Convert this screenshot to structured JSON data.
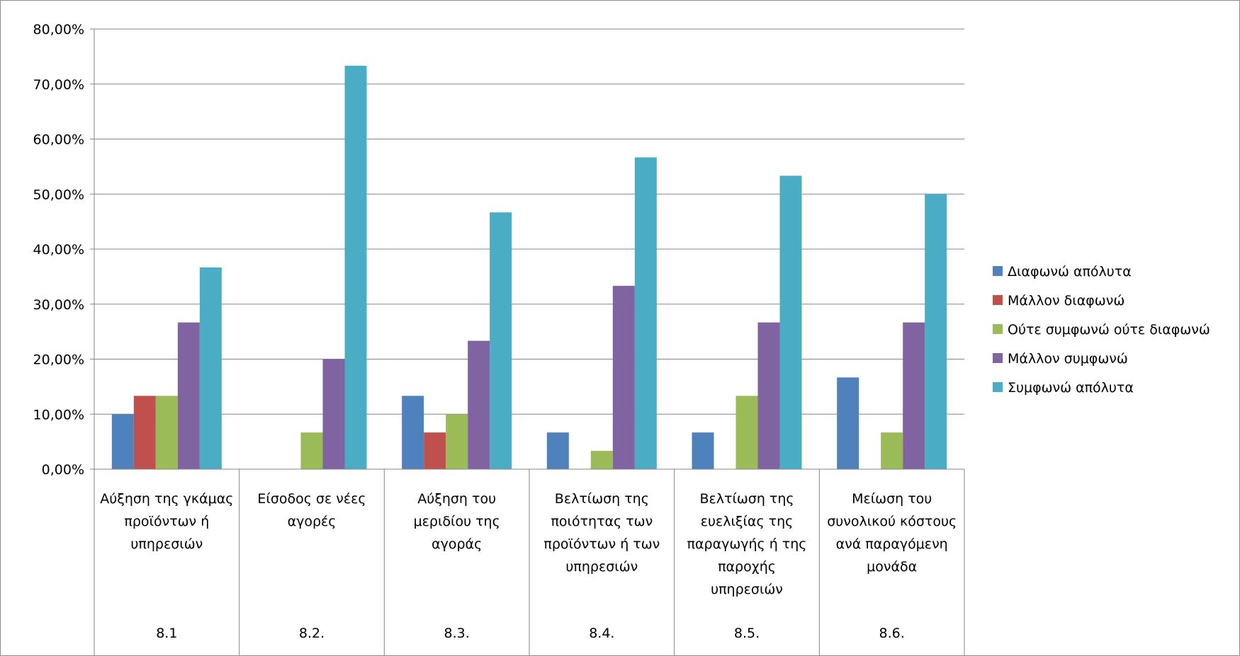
{
  "chart_data": {
    "type": "bar",
    "ylim": [
      0,
      0.8
    ],
    "y_tick_step": 0.1,
    "y_tick_labels": [
      "0,00%",
      "10,00%",
      "20,00%",
      "30,00%",
      "40,00%",
      "50,00%",
      "60,00%",
      "70,00%",
      "80,00%"
    ],
    "grid": true,
    "legend_position": "right",
    "categories": [
      {
        "lines": [
          "Αύξηση της γκάμας",
          "προϊόντων ή",
          "υπηρεσιών"
        ],
        "code": "8.1"
      },
      {
        "lines": [
          "Είσοδος σε νέες",
          "αγορές"
        ],
        "code": "8.2."
      },
      {
        "lines": [
          "Αύξηση του",
          "μεριδίου της",
          "αγοράς"
        ],
        "code": "8.3."
      },
      {
        "lines": [
          "Βελτίωση της",
          "ποιότητας των",
          "προϊόντων ή των",
          "υπηρεσιών"
        ],
        "code": "8.4."
      },
      {
        "lines": [
          "Βελτίωση της",
          "ευελιξίας της",
          "παραγωγής ή της",
          "παροχής",
          "υπηρεσιών"
        ],
        "code": "8.5."
      },
      {
        "lines": [
          "Μείωση του",
          "συνολικού κόστους",
          "ανά παραγόμενη",
          "μονάδα"
        ],
        "code": "8.6."
      }
    ],
    "series": [
      {
        "name": "Διαφωνώ απόλυτα",
        "color": "#4f81bd",
        "values": [
          0.1,
          0.0,
          0.1333,
          0.0667,
          0.0667,
          0.1667
        ]
      },
      {
        "name": "Μάλλον διαφωνώ",
        "color": "#c0504d",
        "values": [
          0.1333,
          0.0,
          0.0667,
          0.0,
          0.0,
          0.0
        ]
      },
      {
        "name": "Ούτε συμφωνώ ούτε διαφωνώ",
        "color": "#9bbb59",
        "values": [
          0.1333,
          0.0667,
          0.1,
          0.0333,
          0.1333,
          0.0667
        ]
      },
      {
        "name": "Μάλλον συμφωνώ",
        "color": "#8064a2",
        "values": [
          0.2667,
          0.2,
          0.2333,
          0.3333,
          0.2667,
          0.2667
        ]
      },
      {
        "name": "Συμφωνώ απόλυτα",
        "color": "#4bacc6",
        "values": [
          0.3667,
          0.7333,
          0.4667,
          0.5667,
          0.5333,
          0.5
        ]
      }
    ]
  }
}
